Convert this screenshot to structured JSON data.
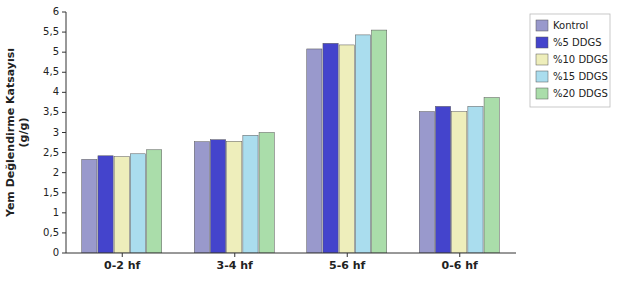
{
  "chart_data": {
    "type": "bar",
    "categories": [
      "0-2 hf",
      "3-4 hf",
      "5-6 hf",
      "0-6 hf"
    ],
    "series": [
      {
        "name": "Kontrol",
        "color": "#9999CC",
        "values": [
          2.33,
          2.77,
          5.08,
          3.52
        ]
      },
      {
        "name": "%5 DDGS",
        "color": "#4444CC",
        "values": [
          2.42,
          2.82,
          5.22,
          3.65
        ]
      },
      {
        "name": "%10 DDGS",
        "color": "#EEEEBB",
        "values": [
          2.4,
          2.78,
          5.18,
          3.52
        ]
      },
      {
        "name": "%15 DDGS",
        "color": "#AADDEE",
        "values": [
          2.47,
          2.93,
          5.43,
          3.65
        ]
      },
      {
        "name": "%20 DDGS",
        "color": "#AADDAA",
        "values": [
          2.57,
          3.0,
          5.55,
          3.87
        ]
      }
    ],
    "ylabel": "Yem Değlendirme Katsayısı\n(g/g)",
    "ylim": [
      0,
      6
    ],
    "yticks": [
      0,
      {
        "value": 0.5,
        "label": "0,5"
      },
      1,
      {
        "value": 1.5,
        "label": "1,5"
      },
      2,
      {
        "value": 2.5,
        "label": "2,5"
      },
      3,
      {
        "value": 3.5,
        "label": "3,5"
      },
      4,
      {
        "value": 4.5,
        "label": "4,5"
      },
      5,
      {
        "value": 5.5,
        "label": "5,5"
      },
      6
    ],
    "grid": false,
    "legend": "upper right"
  }
}
